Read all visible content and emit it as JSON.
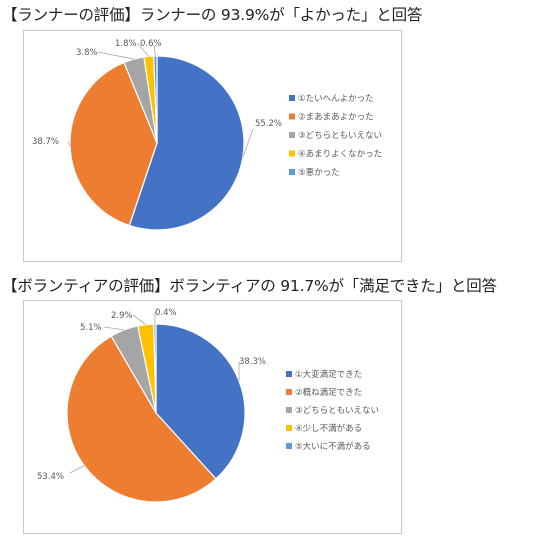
{
  "headings": {
    "runner": "【ランナーの評価】ランナーの 93.9%が「よかった」と回答",
    "volunteer": "【ボランティアの評価】ボランティアの 91.7%が「満足できた」と回答"
  },
  "colors": [
    "#4472c4",
    "#ed7d31",
    "#a5a5a5",
    "#ffc000",
    "#5b9bd5"
  ],
  "chart_data": [
    {
      "type": "pie",
      "title": "",
      "legend_position": "right",
      "categories": [
        "①たいへんよかった",
        "②まあまあよかった",
        "③どちらともいえない",
        "④あまりよくなかった",
        "⑤悪かった"
      ],
      "values": [
        55.2,
        38.7,
        3.8,
        1.8,
        0.6
      ],
      "data_labels": [
        "55.2%",
        "38.7%",
        "3.8%",
        "1.8%",
        "0.6%"
      ]
    },
    {
      "type": "pie",
      "title": "",
      "legend_position": "right",
      "categories": [
        "①大変満足できた",
        "②概ね満足できた",
        "③どちらともいえない",
        "④少し不満がある",
        "⑤大いに不満がある"
      ],
      "values": [
        38.3,
        53.4,
        5.1,
        2.9,
        0.4
      ],
      "data_labels": [
        "38.3%",
        "53.4%",
        "5.1%",
        "2.9%",
        "0.4%"
      ]
    }
  ]
}
